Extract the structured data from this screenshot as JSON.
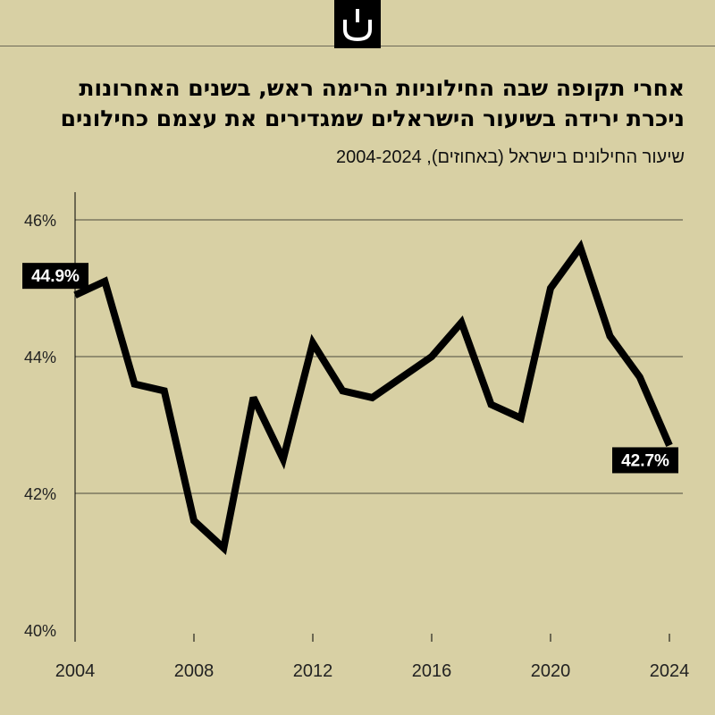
{
  "header": {
    "logo_icon": "publication-logo-icon",
    "title": "אחרי תקופה שבה החילוניות הרימה ראש, בשנים האחרונות ניכרת ירידה בשיעור הישראלים שמגדירים את עצמם כחילונים",
    "subtitle": "שיעור החילונים בישראל (באחוזים), 2004-2024"
  },
  "chart_data": {
    "type": "line",
    "title": "שיעור החילונים בישראל (באחוזים), 2004-2024",
    "x": [
      2004,
      2005,
      2006,
      2007,
      2008,
      2009,
      2010,
      2011,
      2012,
      2013,
      2014,
      2015,
      2016,
      2017,
      2018,
      2019,
      2020,
      2021,
      2022,
      2023,
      2024
    ],
    "series": [
      {
        "values": [
          44.9,
          45.1,
          43.6,
          43.5,
          41.6,
          41.2,
          43.4,
          42.5,
          44.2,
          43.5,
          43.4,
          43.7,
          44.0,
          44.5,
          43.3,
          43.1,
          45.0,
          45.6,
          44.3,
          43.7,
          42.7
        ]
      }
    ],
    "ylim": [
      40,
      46
    ],
    "yticks": [
      40,
      42,
      44,
      46
    ],
    "ytick_labels": [
      "40%",
      "42%",
      "44%",
      "46%"
    ],
    "xticks": [
      2004,
      2008,
      2012,
      2016,
      2020,
      2024
    ],
    "xtick_labels": [
      "2004",
      "2008",
      "2012",
      "2016",
      "2020",
      "2024"
    ],
    "annotations": [
      {
        "label": "44.9%",
        "x": 2004,
        "y": 44.9,
        "side": "start"
      },
      {
        "label": "42.7%",
        "x": 2024,
        "y": 42.7,
        "side": "end"
      }
    ],
    "grid": "horizontal",
    "line_color": "#000000",
    "background_color": "#d8d0a4",
    "grid_color": "#4d4a3c"
  }
}
